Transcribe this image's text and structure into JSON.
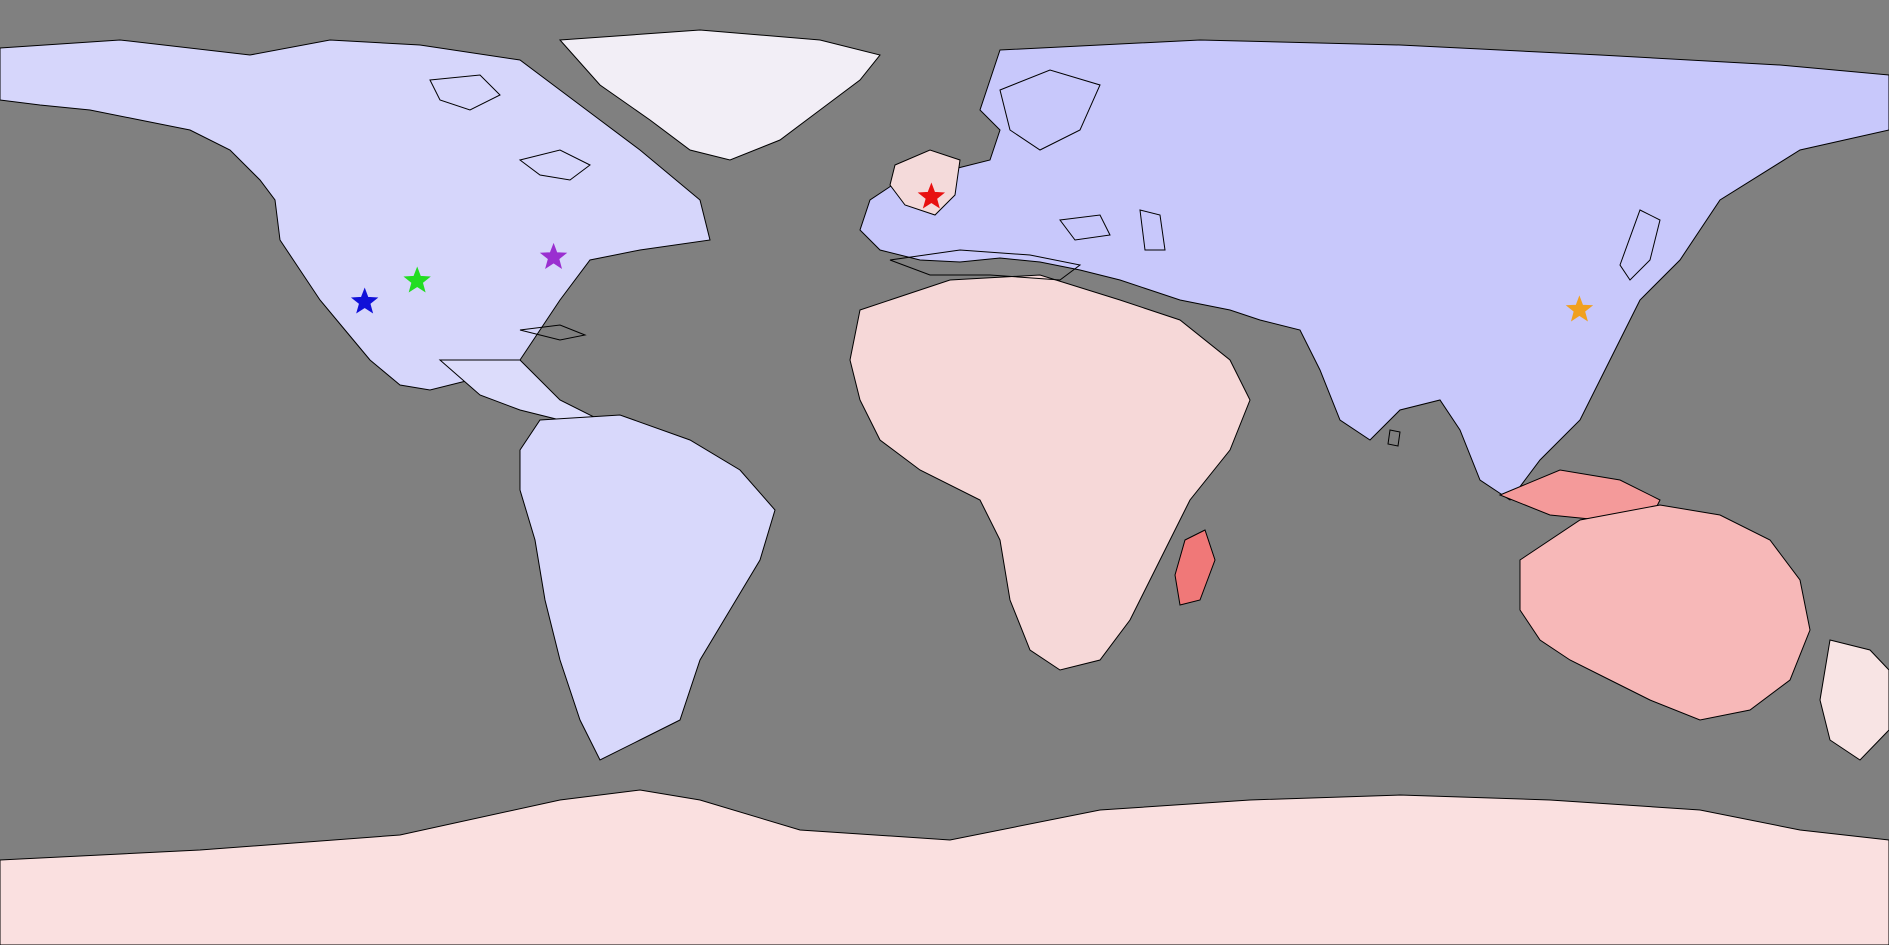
{
  "map": {
    "projection": "equirectangular",
    "ocean_color": "#808080",
    "coastline_color": "#000000",
    "colormap": {
      "type": "diverging",
      "negative_color": "#0000ff",
      "neutral_color": "#ffffff",
      "positive_color": "#ff3333"
    },
    "markers": [
      {
        "name": "blue-star",
        "color": "#1010d8",
        "lon": -110.5,
        "lat": 32.5
      },
      {
        "name": "green-star",
        "color": "#22dd22",
        "lon": -100.5,
        "lat": 36.5
      },
      {
        "name": "purple-star",
        "color": "#9a2fd0",
        "lon": -74.5,
        "lat": 41.0
      },
      {
        "name": "red-star",
        "color": "#e81010",
        "lon": -2.5,
        "lat": 52.5
      },
      {
        "name": "orange-star",
        "color": "#f0a020",
        "lon": 121.0,
        "lat": 31.0
      }
    ]
  }
}
